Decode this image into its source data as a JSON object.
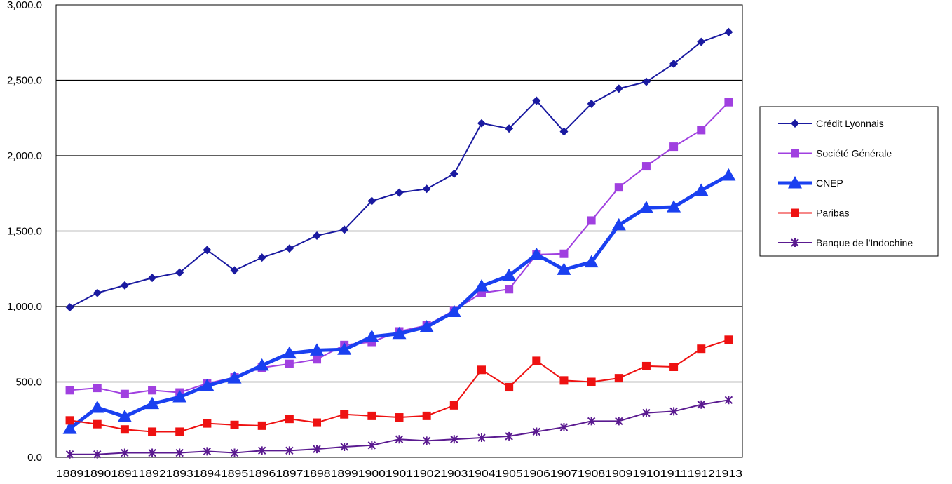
{
  "chart_data": {
    "type": "line",
    "title": "",
    "xlabel": "",
    "ylabel": "",
    "categories": [
      "1889",
      "1890",
      "1891",
      "1892",
      "1893",
      "1894",
      "1895",
      "1896",
      "1897",
      "1898",
      "1899",
      "1900",
      "1901",
      "1902",
      "1903",
      "1904",
      "1905",
      "1906",
      "1907",
      "1908",
      "1909",
      "1910",
      "1911",
      "1912",
      "1913"
    ],
    "y_tick_labels": [
      "0.0",
      "500.0",
      "1,000.0",
      "1,500.0",
      "2,000.0",
      "2,500.0",
      "3,000.0"
    ],
    "y_ticks": [
      0,
      500,
      1000,
      1500,
      2000,
      2500,
      3000
    ],
    "ylim": [
      0,
      3000
    ],
    "grid": "horizontal",
    "legend_position": "right",
    "series": [
      {
        "name": "Crédit Lyonnais",
        "color": "#1a1aa0",
        "marker": "diamond",
        "width": "thin",
        "values": [
          995,
          1090,
          1140,
          1190,
          1225,
          1375,
          1240,
          1325,
          1385,
          1470,
          1510,
          1700,
          1755,
          1780,
          1880,
          2215,
          2180,
          2365,
          2160,
          2345,
          2445,
          2490,
          2610,
          2755,
          2820
        ]
      },
      {
        "name": "Société Générale",
        "color": "#a040e0",
        "marker": "square",
        "width": "thin",
        "values": [
          445,
          460,
          420,
          445,
          430,
          490,
          530,
          595,
          620,
          650,
          745,
          765,
          835,
          875,
          975,
          1090,
          1115,
          1345,
          1350,
          1570,
          1790,
          1930,
          2060,
          2170,
          2355
        ]
      },
      {
        "name": "CNEP",
        "color": "#1a40f0",
        "marker": "triangle",
        "width": "thick",
        "values": [
          190,
          330,
          270,
          355,
          400,
          475,
          525,
          610,
          690,
          710,
          715,
          800,
          820,
          865,
          965,
          1135,
          1205,
          1345,
          1245,
          1295,
          1540,
          1655,
          1660,
          1770,
          1870
        ]
      },
      {
        "name": "Paribas",
        "color": "#ee1111",
        "marker": "square",
        "width": "thin",
        "values": [
          245,
          220,
          185,
          170,
          170,
          225,
          215,
          210,
          255,
          230,
          285,
          275,
          265,
          275,
          345,
          580,
          465,
          640,
          510,
          500,
          525,
          605,
          600,
          720,
          780
        ]
      },
      {
        "name": "Banque de l'Indochine",
        "color": "#5a1a90",
        "marker": "star",
        "width": "thin",
        "values": [
          20,
          20,
          30,
          30,
          30,
          40,
          30,
          45,
          45,
          55,
          70,
          80,
          120,
          110,
          120,
          130,
          140,
          170,
          200,
          240,
          240,
          295,
          305,
          350,
          380
        ]
      }
    ]
  }
}
